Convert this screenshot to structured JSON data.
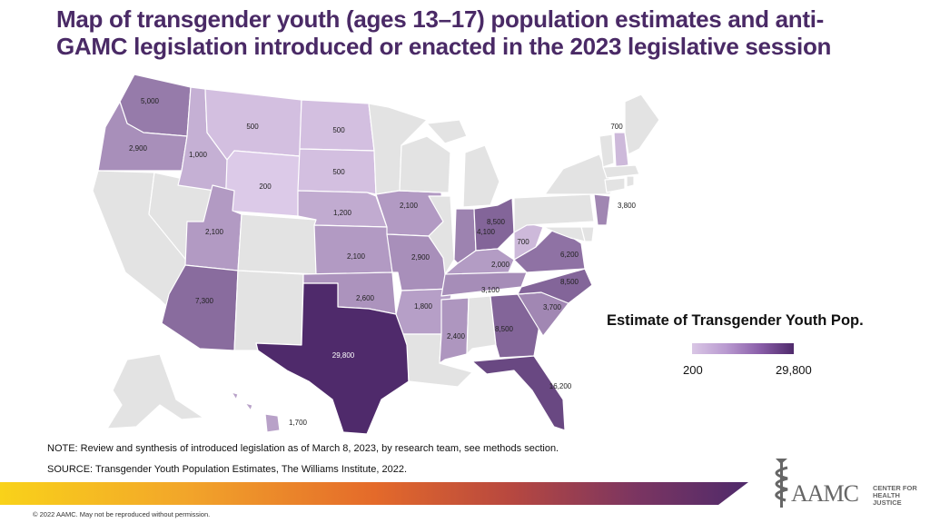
{
  "title": {
    "line1": "Map of transgender youth (ages 13–17) population estimates and anti-",
    "line2": "GAMC legislation introduced or enacted in the 2023 legislative session"
  },
  "colors": {
    "title": "#4a2a66",
    "no_data": "#e3e3e3",
    "scale_low": "#dcc8e6",
    "scale_high": "#4f2a6b"
  },
  "legend": {
    "title": "Estimate of Transgender Youth Pop.",
    "min_label": "200",
    "max_label": "29,800"
  },
  "chart_data": {
    "type": "choropleth",
    "title": "Estimate of Transgender Youth Pop.",
    "range": [
      200,
      29800
    ],
    "states": [
      {
        "state": "WA",
        "value": 5000,
        "label": "5,000"
      },
      {
        "state": "OR",
        "value": 2900,
        "label": "2,900"
      },
      {
        "state": "ID",
        "value": 1000,
        "label": "1,000"
      },
      {
        "state": "MT",
        "value": 500,
        "label": "500"
      },
      {
        "state": "ND",
        "value": 500,
        "label": "500"
      },
      {
        "state": "SD",
        "value": 500,
        "label": "500"
      },
      {
        "state": "WY",
        "value": 200,
        "label": "200"
      },
      {
        "state": "NE",
        "value": 1200,
        "label": "1,200"
      },
      {
        "state": "UT",
        "value": 2100,
        "label": "2,100"
      },
      {
        "state": "KS",
        "value": 2100,
        "label": "2,100"
      },
      {
        "state": "IA",
        "value": 2100,
        "label": "2,100"
      },
      {
        "state": "MO",
        "value": 2900,
        "label": "2,900"
      },
      {
        "state": "AZ",
        "value": 7300,
        "label": "7,300"
      },
      {
        "state": "OK",
        "value": 2600,
        "label": "2,600"
      },
      {
        "state": "AR",
        "value": 1800,
        "label": "1,800"
      },
      {
        "state": "TX",
        "value": 29800,
        "label": "29,800"
      },
      {
        "state": "MS",
        "value": 2400,
        "label": "2,400"
      },
      {
        "state": "IN",
        "value": 4100,
        "label": "4,100"
      },
      {
        "state": "OH",
        "value": 8500,
        "label": "8,500"
      },
      {
        "state": "KY",
        "value": 2000,
        "label": "2,000"
      },
      {
        "state": "TN",
        "value": 3100,
        "label": "3,100"
      },
      {
        "state": "WV",
        "value": 700,
        "label": "700"
      },
      {
        "state": "VA",
        "value": 6200,
        "label": "6,200"
      },
      {
        "state": "NC",
        "value": 8500,
        "label": "8,500"
      },
      {
        "state": "SC",
        "value": 3700,
        "label": "3,700"
      },
      {
        "state": "GA",
        "value": 8500,
        "label": "8,500"
      },
      {
        "state": "FL",
        "value": 16200,
        "label": "16,200"
      },
      {
        "state": "NH",
        "value": 700,
        "label": "700"
      },
      {
        "state": "NJ",
        "value": 3800,
        "label": "3,800"
      },
      {
        "state": "HI",
        "value": 1700,
        "label": "1,700"
      }
    ],
    "no_data_states": [
      "CA",
      "NV",
      "CO",
      "NM",
      "MN",
      "WI",
      "IL",
      "MI",
      "AL",
      "LA",
      "PA",
      "NY",
      "VT",
      "ME",
      "MA",
      "CT",
      "RI",
      "DE",
      "MD",
      "AK"
    ]
  },
  "footer": {
    "note": "NOTE: Review and synthesis of introduced legislation as of March 8, 2023, by research team, see methods section.",
    "source": "SOURCE: Transgender Youth Population Estimates, The Williams Institute, 2022.",
    "copyright": "© 2022 AAMC. May not be reproduced without permission.",
    "logo_main": "AAMC",
    "logo_sub_line1": "CENTER FOR",
    "logo_sub_line2": "HEALTH JUSTICE"
  }
}
